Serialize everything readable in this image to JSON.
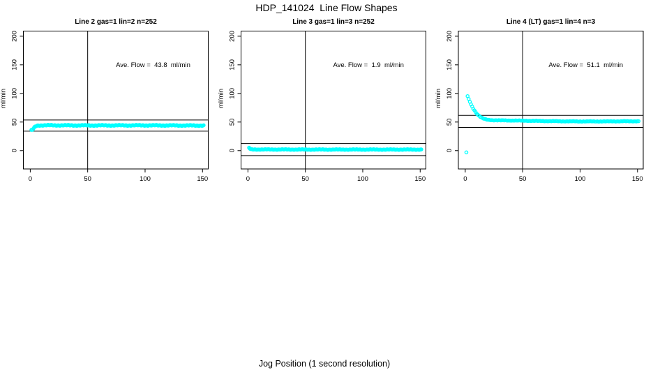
{
  "figure": {
    "title": "HDP_141024  Line Flow Shapes",
    "xlabel": "Jog Position (1 second resolution)",
    "background_color": "#FFFFFF",
    "axis_color": "#000000",
    "marker_color": "#00FFFF"
  },
  "chart_data": [
    {
      "type": "scatter",
      "title": "Line 2 gas=1 lin=2 n=252",
      "line_label": "Line 2",
      "gas": 1,
      "lin": 2,
      "n": 252,
      "annotation": "Ave. Flow =  43.8  ml/min",
      "ave_flow_ml_min": 43.8,
      "ylabel": "ml/min",
      "xlim": [
        -6,
        155
      ],
      "ylim": [
        -32,
        209
      ],
      "x_ticks": [
        0,
        50,
        100,
        150
      ],
      "y_ticks": [
        0,
        50,
        100,
        150,
        200
      ],
      "vline_x": 50,
      "hlines": [
        53.5,
        34
      ],
      "n_points": 252,
      "series_profile": [
        [
          1,
          35.5
        ],
        [
          2,
          36.5
        ],
        [
          3,
          39
        ],
        [
          4,
          41.5
        ],
        [
          5,
          43
        ],
        [
          6,
          43.8
        ],
        [
          8,
          44.2
        ],
        [
          15,
          44.3
        ],
        [
          50,
          44.1
        ],
        [
          100,
          44.2
        ],
        [
          151,
          43.9
        ]
      ],
      "outliers": [],
      "annotation_pos": [
        107,
        150
      ],
      "grid": false,
      "legend": "none"
    },
    {
      "type": "scatter",
      "title": "Line 3 gas=1 lin=3 n=252",
      "line_label": "Line 3",
      "gas": 1,
      "lin": 3,
      "n": 252,
      "annotation": "Ave. Flow =  1.9  ml/min",
      "ave_flow_ml_min": 1.9,
      "ylabel": "ml/min",
      "xlim": [
        -6,
        155
      ],
      "ylim": [
        -32,
        209
      ],
      "x_ticks": [
        0,
        50,
        100,
        150
      ],
      "y_ticks": [
        0,
        50,
        100,
        150,
        200
      ],
      "vline_x": 50,
      "hlines": [
        12.4,
        -8.6
      ],
      "n_points": 252,
      "series_profile": [
        [
          1,
          5
        ],
        [
          2,
          2.6
        ],
        [
          4,
          2.1
        ],
        [
          60,
          1.9
        ],
        [
          151,
          1.9
        ]
      ],
      "outliers": [],
      "annotation_pos": [
        105,
        150
      ],
      "grid": false,
      "legend": "none"
    },
    {
      "type": "scatter",
      "title": "Line 4 (LT) gas=1 lin=4 n=3",
      "line_label": "Line 4 (LT)",
      "gas": 1,
      "lin": 4,
      "n": 3,
      "annotation": "Ave. Flow =  51.1  ml/min",
      "ave_flow_ml_min": 51.1,
      "ylabel": "ml/min",
      "xlim": [
        -6,
        155
      ],
      "ylim": [
        -32,
        209
      ],
      "x_ticks": [
        0,
        50,
        100,
        150
      ],
      "y_ticks": [
        0,
        50,
        100,
        150,
        200
      ],
      "vline_x": 50,
      "hlines": [
        61.6,
        40.6
      ],
      "n_points": 150,
      "series_profile": [
        [
          2,
          95
        ],
        [
          3,
          90
        ],
        [
          4,
          85.5
        ],
        [
          5,
          81
        ],
        [
          6,
          77
        ],
        [
          7,
          73.5
        ],
        [
          8,
          70.5
        ],
        [
          9,
          67.5
        ],
        [
          10,
          65
        ],
        [
          11,
          62.8
        ],
        [
          12,
          61
        ],
        [
          13,
          59.3
        ],
        [
          14,
          58
        ],
        [
          15,
          56.8
        ],
        [
          16,
          55.9
        ],
        [
          17,
          55.2
        ],
        [
          18,
          54.6
        ],
        [
          20,
          53.8
        ],
        [
          24,
          53.2
        ],
        [
          30,
          52.9
        ],
        [
          40,
          52.7
        ],
        [
          50,
          52.4
        ],
        [
          60,
          52
        ],
        [
          70,
          51.7
        ],
        [
          85,
          51.3
        ],
        [
          100,
          51.1
        ],
        [
          120,
          51.1
        ],
        [
          135,
          51.3
        ],
        [
          151,
          51.4
        ]
      ],
      "outliers": [
        [
          1,
          -3
        ]
      ],
      "annotation_pos": [
        105,
        150
      ],
      "grid": false,
      "legend": "none"
    }
  ]
}
